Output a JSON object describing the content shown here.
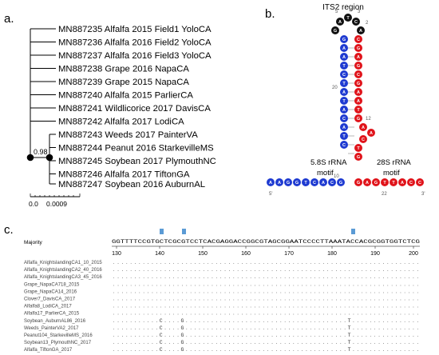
{
  "panels": {
    "a": "a.",
    "b": "b.",
    "c": "c."
  },
  "tree": {
    "taxa": [
      "MN887235 Alfalfa 2015 Field1 YoloCA",
      "MN887236 Alfalfa 2016 Field2 YoloCA",
      "MN887237 Alfalfa 2016 Field3 YoloCA",
      "MN887238 Grape 2016 NapaCA",
      "MN887239 Grape 2015 NapaCA",
      "MN887240 Alfalfa 2015 ParlierCA",
      "MN887241 Wildlicorice 2017 DavisCA",
      "MN887242 Alfalfa 2017 LodiCA",
      "MN887243 Weeds 2017 PainterVA",
      "MN887244 Peanut 2016 StarkevilleMS",
      "MN887245 Soybean 2017 PlymouthNC",
      "MN887246 Alfalfa 2017 TiftonGA",
      "MN887247 Soybean 2016 AuburnAL"
    ],
    "bootstrap": "0.98",
    "scale_min": "0.0",
    "scale_max": "0.0009"
  },
  "structure": {
    "title": "ITS2 region",
    "left_label": [
      "5.8S rRNA",
      "motif"
    ],
    "right_label": [
      "28S rRNA",
      "motif"
    ],
    "loop_bases": [
      "G",
      "A",
      "T",
      "C",
      "A"
    ],
    "left_stem": [
      "G",
      "A",
      "A",
      "T",
      "C",
      "T",
      "A",
      "T",
      "A",
      "C",
      "A",
      "T",
      "C"
    ],
    "right_stem": [
      "C",
      "G",
      "A",
      "G",
      "C",
      "G",
      "A",
      "A",
      "T",
      "G",
      "A",
      "A",
      "C",
      "T",
      "G"
    ],
    "bottom_left": [
      "A",
      "A",
      "G",
      "G",
      "T",
      "C",
      "A",
      "C",
      "G"
    ],
    "bottom_right": [
      "G",
      "A",
      "G",
      "T",
      "T",
      "A",
      "C",
      "C"
    ],
    "numbers": {
      "n2": "2",
      "n5": "5'",
      "n3": "3'",
      "n20": "20",
      "n12": "12",
      "n10": "10",
      "n22": "22",
      "nb5": "5'",
      "nb3": "3'"
    }
  },
  "alignment": {
    "majority_label": "Majority",
    "majority_seq": "GGTTTTCCGTGCTCGCGTCCTCACGAGGACCGGCGTAGCGGAATCCCCTTAAATACCACGCGGTGGTCTCG",
    "ruler": [
      "130",
      "140",
      "150",
      "160",
      "170",
      "180",
      "190",
      "200"
    ],
    "rows": [
      {
        "name": "Alfalfa_KnightslandingCA1_10_2015",
        "seq": ""
      },
      {
        "name": "Alfalfa_KnightslandingCA2_40_2016",
        "seq": ""
      },
      {
        "name": "Alfalfa_KnightslandingCA3_45_2016",
        "seq": ""
      },
      {
        "name": "Grape_NapaCA718_2015",
        "seq": ""
      },
      {
        "name": "Grape_NapaCA14_2016",
        "seq": ""
      },
      {
        "name": "Clover7_DavisCA_2017",
        "seq": ""
      },
      {
        "name": "Alfalfa8_LodiCA_2017",
        "seq": ""
      },
      {
        "name": "Alfalfa17_ParlierCA_2015",
        "seq": ""
      },
      {
        "name": "Soybean_AuburnAL86_2016",
        "seq": "C G T"
      },
      {
        "name": "Weeds_PainterVA2_2017",
        "seq": "C G T"
      },
      {
        "name": "Peanut104_StarkevilleMS_2016",
        "seq": "C G T"
      },
      {
        "name": "Soybean13_PlymouthNC_2017",
        "seq": "C G T"
      },
      {
        "name": "Alfalfa_TiftonGA_2017",
        "seq": "C G T"
      }
    ]
  },
  "colors": {
    "blue": "#1f3bd1",
    "red": "#e0141b",
    "black": "#111111",
    "marker": "#5b9bd5"
  }
}
